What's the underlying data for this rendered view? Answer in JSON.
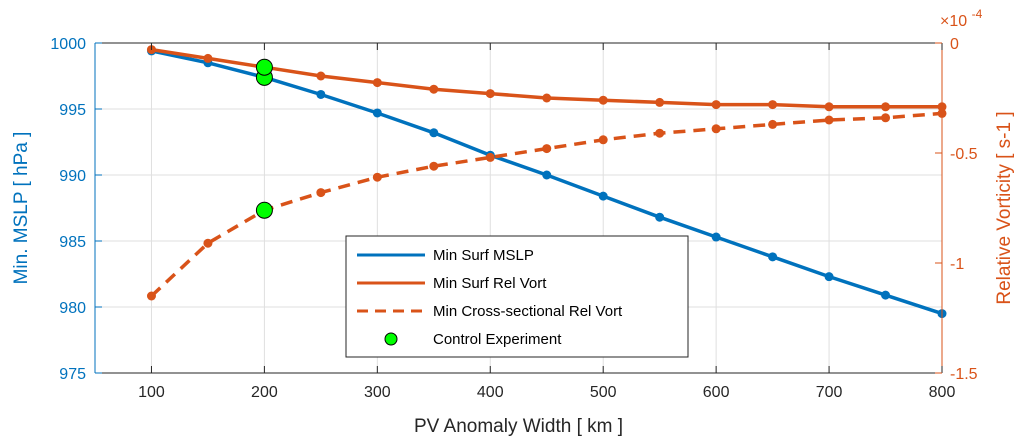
{
  "colors": {
    "mslp": "#0072BD",
    "vort": "#D95319",
    "control": "#00FF00",
    "grid": "#dfdfdf",
    "axis": "#262626"
  },
  "chart_data": {
    "type": "line",
    "xlabel": "PV Anomaly Width [ km ]",
    "ylabel_left": "Min. MSLP [ hPa ]",
    "ylabel_right": "Relative Vorticity [ s-1 ]",
    "right_axis_exponent": "×10",
    "right_axis_exponent_power": "-4",
    "xlim": [
      50,
      800
    ],
    "ylim_left": [
      975,
      1000
    ],
    "ylim_right": [
      -1.5,
      0
    ],
    "xticks": [
      "100",
      "200",
      "300",
      "400",
      "500",
      "600",
      "700",
      "800"
    ],
    "yticks_left": [
      "975",
      "980",
      "985",
      "990",
      "995",
      "1000"
    ],
    "yticks_right": [
      "-1.5",
      "-1",
      "-0.5",
      "0"
    ],
    "grid": true,
    "legend_position": "lower-center",
    "x": [
      100,
      150,
      200,
      250,
      300,
      350,
      400,
      450,
      500,
      550,
      600,
      650,
      700,
      750,
      800
    ],
    "series": [
      {
        "name": "Min Surf MSLP",
        "axis": "left",
        "style": "solid",
        "values": [
          999.4,
          998.5,
          997.4,
          996.1,
          994.7,
          993.2,
          991.5,
          990.0,
          988.4,
          986.8,
          985.3,
          983.8,
          982.3,
          980.9,
          979.5
        ]
      },
      {
        "name": "Min Surf Rel Vort",
        "axis": "right",
        "style": "solid",
        "values": [
          -0.03,
          -0.07,
          -0.11,
          -0.15,
          -0.18,
          -0.21,
          -0.23,
          -0.25,
          -0.26,
          -0.27,
          -0.28,
          -0.28,
          -0.29,
          -0.29,
          -0.29
        ]
      },
      {
        "name": "Min Cross-sectional Rel Vort",
        "axis": "right",
        "style": "dashed",
        "values": [
          -1.15,
          -0.91,
          -0.76,
          -0.68,
          -0.61,
          -0.56,
          -0.52,
          -0.48,
          -0.44,
          -0.41,
          -0.39,
          -0.37,
          -0.35,
          -0.34,
          -0.32
        ]
      }
    ],
    "control_experiment": {
      "name": "Control Experiment",
      "x": 200,
      "points": [
        {
          "axis": "left",
          "y": 997.4
        },
        {
          "axis": "right",
          "y": -0.11
        },
        {
          "axis": "right",
          "y": -0.76
        }
      ]
    }
  }
}
